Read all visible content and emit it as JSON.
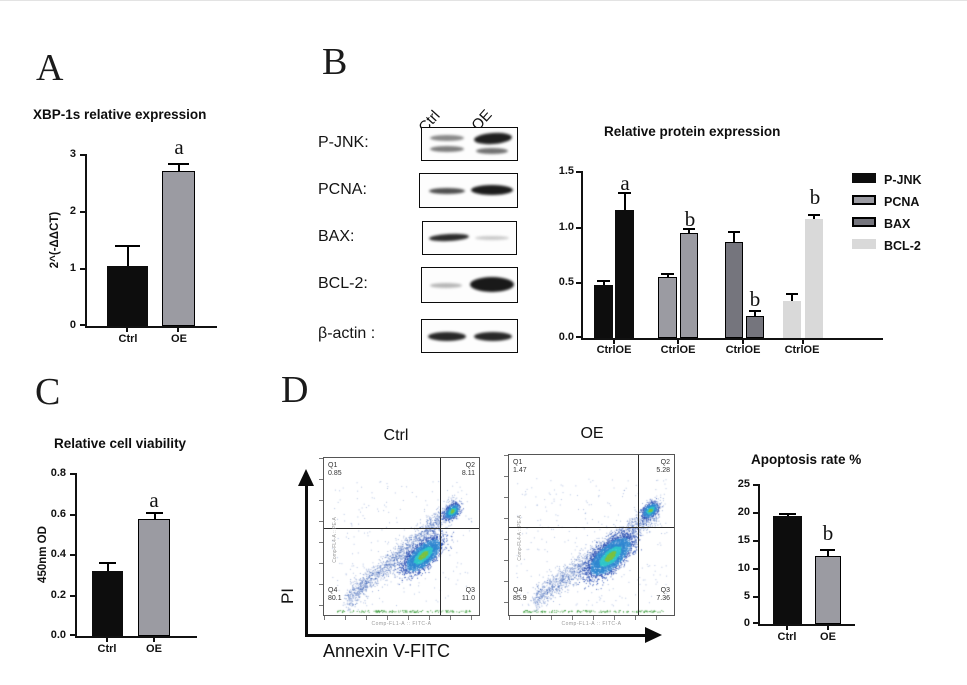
{
  "figure": {
    "panel_letters": {
      "a": "A",
      "b": "B",
      "c": "C",
      "d": "D"
    }
  },
  "chart_data": {
    "xbp1s": {
      "type": "bar",
      "title": "XBP-1s relative expression",
      "ylabel": "2^(-ΔΔCT)",
      "categories": [
        "Ctrl",
        "OE"
      ],
      "values": [
        1.05,
        2.7
      ],
      "errors": [
        0.33,
        0.1
      ],
      "sig_labels": [
        "",
        "a"
      ],
      "ylim": [
        0,
        3
      ],
      "yticks": [
        "3",
        "2",
        "1",
        "0"
      ],
      "bar_colors": [
        "#0d0d0d",
        "#9b9ba2"
      ]
    },
    "protein": {
      "type": "bar",
      "title": "Relative protein expression",
      "group_categories": [
        "Ctrl",
        "OE"
      ],
      "ylim": [
        0,
        1.5
      ],
      "yticks": [
        "1.5",
        "1.0",
        "0.5",
        "0.0"
      ],
      "legend_position": "right",
      "series": [
        {
          "name": "P-JNK",
          "color": "#0d0d0d",
          "ctrl": 0.48,
          "ctrl_err": 0.02,
          "oe": 1.15,
          "oe_err": 0.14,
          "sig": "a"
        },
        {
          "name": "PCNA",
          "color": "#9b9ba2",
          "ctrl": 0.55,
          "ctrl_err": 0.02,
          "oe": 0.94,
          "oe_err": 0.03,
          "sig": "b"
        },
        {
          "name": "BAX",
          "color": "#75757d",
          "ctrl": 0.86,
          "ctrl_err": 0.08,
          "oe": 0.2,
          "oe_err": 0.03,
          "sig": "b"
        },
        {
          "name": "BCL-2",
          "color": "#d9d9d9",
          "ctrl": 0.33,
          "ctrl_err": 0.06,
          "oe": 1.07,
          "oe_err": 0.03,
          "sig": "b"
        }
      ]
    },
    "viability": {
      "type": "bar",
      "title": "Relative cell viability",
      "ylabel": "450nm OD",
      "categories": [
        "Ctrl",
        "OE"
      ],
      "values": [
        0.32,
        0.575
      ],
      "errors": [
        0.035,
        0.025
      ],
      "sig_labels": [
        "",
        "a"
      ],
      "ylim": [
        0,
        0.8
      ],
      "yticks": [
        "0.8",
        "0.6",
        "0.4",
        "0.2",
        "0.0"
      ],
      "bar_colors": [
        "#0d0d0d",
        "#9b9ba2"
      ]
    },
    "apoptosis": {
      "type": "bar",
      "title": "Apoptosis rate %",
      "categories": [
        "Ctrl",
        "OE"
      ],
      "values": [
        19.2,
        12.2
      ],
      "errors": [
        0.3,
        0.9
      ],
      "sig_labels": [
        "",
        "b"
      ],
      "ylim": [
        0,
        25
      ],
      "yticks": [
        "25",
        "20",
        "15",
        "10",
        "5",
        "0"
      ],
      "bar_colors": [
        "#0d0d0d",
        "#9b9ba2"
      ]
    }
  },
  "blots": {
    "col_headers": [
      "Ctrl",
      "OE"
    ],
    "rows": [
      {
        "label": "P-JNK:"
      },
      {
        "label": "PCNA:"
      },
      {
        "label": "BAX:"
      },
      {
        "label": "BCL-2:"
      },
      {
        "label": "β-actin :"
      }
    ]
  },
  "flow": {
    "xlabel": "Annexin V-FITC",
    "ylabel": "PI",
    "detector_x": "Comp-FL1-A :: FITC-A",
    "detector_y": "Comp-FL4-A :: PE-A",
    "plots": [
      {
        "title": "Ctrl",
        "quadrants": {
          "q1": {
            "label": "Q1",
            "value": "0.85"
          },
          "q2": {
            "label": "Q2",
            "value": "8.11"
          },
          "q3": {
            "label": "Q3",
            "value": "11.0"
          },
          "q4": {
            "label": "Q4",
            "value": "80.1"
          }
        }
      },
      {
        "title": "OE",
        "quadrants": {
          "q1": {
            "label": "Q1",
            "value": "1.47"
          },
          "q2": {
            "label": "Q2",
            "value": "5.28"
          },
          "q3": {
            "label": "Q3",
            "value": "7.36"
          },
          "q4": {
            "label": "Q4",
            "value": "85.9"
          }
        }
      }
    ]
  }
}
